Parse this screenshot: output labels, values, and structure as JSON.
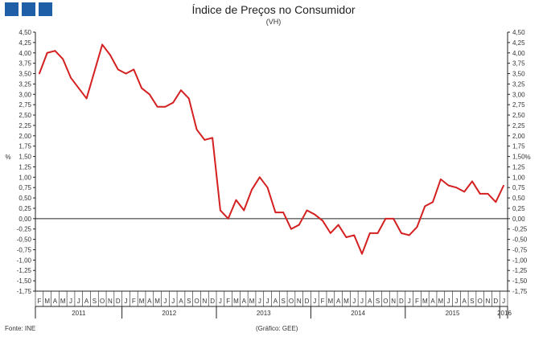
{
  "title": "Índice de Preços no Consumidor",
  "subtitle": "(VH)",
  "footer": {
    "source": "Fonte: INE",
    "credit": "(Gráfico: GEE)"
  },
  "colors": {
    "logo": "#1f5fa8",
    "series": "#d42020",
    "axis": "#222222"
  },
  "chart_data": {
    "type": "line",
    "ylabel": "%",
    "ylabel_right": "%",
    "ylim": [
      -1.75,
      4.5
    ],
    "ytick_step": 0.25,
    "ytick_labels": [
      "4,50",
      "4,25",
      "4,00",
      "3,75",
      "3,50",
      "3,25",
      "3,00",
      "2,75",
      "2,50",
      "2,25",
      "2,00",
      "1,75",
      "1,50",
      "1,25",
      "1,00",
      "0,75",
      "0,50",
      "0,25",
      "0,00",
      "-0,25",
      "-0,50",
      "-0,75",
      "-1,00",
      "-1,25",
      "-1,50",
      "-1,75"
    ],
    "month_labels": [
      "F",
      "M",
      "A",
      "M",
      "J",
      "J",
      "A",
      "S",
      "O",
      "N",
      "D",
      "J",
      "F",
      "M",
      "A",
      "M",
      "J",
      "J",
      "A",
      "S",
      "O",
      "N",
      "D",
      "J",
      "F",
      "M",
      "A",
      "M",
      "J",
      "J",
      "A",
      "S",
      "O",
      "N",
      "D",
      "J",
      "F",
      "M",
      "A",
      "M",
      "J",
      "J",
      "A",
      "S",
      "O",
      "N",
      "D",
      "J",
      "F",
      "M",
      "A",
      "M",
      "J",
      "J",
      "A",
      "S",
      "O",
      "N",
      "D",
      "J"
    ],
    "year_groups": [
      {
        "label": "2011",
        "months": 11
      },
      {
        "label": "2012",
        "months": 12
      },
      {
        "label": "2013",
        "months": 12
      },
      {
        "label": "2014",
        "months": 12
      },
      {
        "label": "2015",
        "months": 12
      },
      {
        "label": "2016",
        "months": 1
      }
    ],
    "series": [
      {
        "values": [
          3.5,
          4.0,
          4.05,
          3.85,
          3.4,
          3.15,
          2.9,
          3.55,
          4.2,
          3.95,
          3.6,
          3.5,
          3.6,
          3.15,
          3.0,
          2.7,
          2.7,
          2.8,
          3.1,
          2.9,
          2.15,
          1.9,
          1.95,
          0.2,
          0.0,
          0.45,
          0.2,
          0.7,
          1.0,
          0.75,
          0.15,
          0.15,
          -0.25,
          -0.15,
          0.2,
          0.1,
          -0.05,
          -0.35,
          -0.15,
          -0.45,
          -0.4,
          -0.85,
          -0.35,
          -0.35,
          0.0,
          0.0,
          -0.35,
          -0.4,
          -0.2,
          0.3,
          0.4,
          0.95,
          0.8,
          0.75,
          0.65,
          0.9,
          0.6,
          0.6,
          0.4,
          0.8
        ]
      }
    ]
  }
}
